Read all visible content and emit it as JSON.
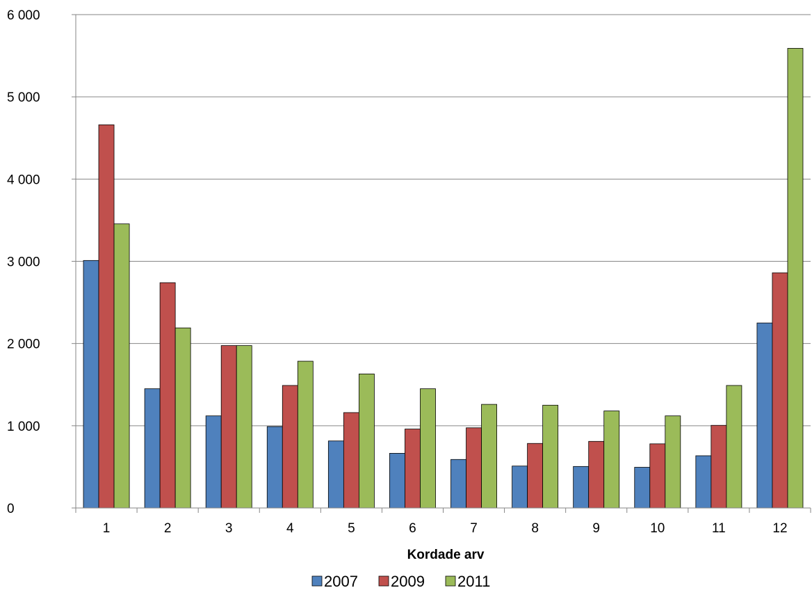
{
  "chart_data": {
    "type": "bar",
    "title": "",
    "xlabel": "Kordade arv",
    "ylabel": "",
    "ylim": [
      0,
      6000
    ],
    "yticks": [
      "0",
      "1 000",
      "2 000",
      "3 000",
      "4 000",
      "5 000",
      "6 000"
    ],
    "ytick_values": [
      0,
      1000,
      2000,
      3000,
      4000,
      5000,
      6000
    ],
    "grid": true,
    "legend_position": "bottom",
    "categories": [
      "1",
      "2",
      "3",
      "4",
      "5",
      "6",
      "7",
      "8",
      "9",
      "10",
      "11",
      "12"
    ],
    "series": [
      {
        "name": "2007",
        "color": "#4f81bd",
        "values": [
          3010,
          1450,
          1120,
          990,
          815,
          665,
          590,
          510,
          505,
          495,
          635,
          2250
        ]
      },
      {
        "name": "2009",
        "color": "#c0504d",
        "values": [
          4660,
          2740,
          1975,
          1490,
          1160,
          960,
          975,
          785,
          810,
          780,
          1005,
          2860
        ]
      },
      {
        "name": "2011",
        "color": "#9bbb59",
        "values": [
          3455,
          2190,
          1975,
          1785,
          1630,
          1450,
          1260,
          1250,
          1180,
          1120,
          1490,
          5590
        ]
      }
    ]
  }
}
